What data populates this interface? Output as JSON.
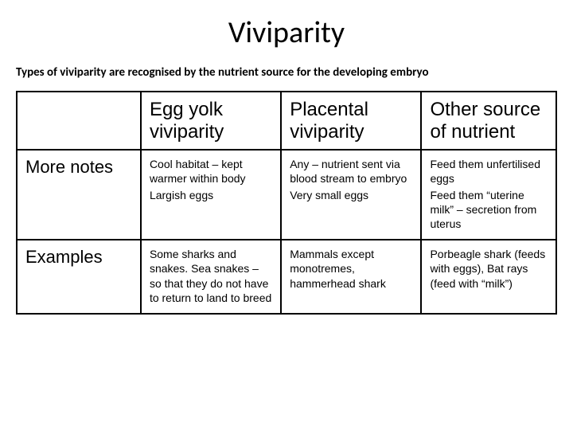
{
  "title": "Viviparity",
  "subtitle": "Types of viviparity are recognised by the nutrient source for the developing embryo",
  "table": {
    "columns": [
      "",
      "Egg yolk viviparity",
      "Placental viviparity",
      "Other source of nutrient"
    ],
    "row_labels": [
      "More notes",
      "Examples"
    ],
    "rows": [
      {
        "c1_l1": "Cool habitat – kept warmer within body",
        "c1_l2": "Largish eggs",
        "c2_l1": "Any – nutrient sent via blood stream to embryo",
        "c2_l2": "Very small eggs",
        "c3_l1": "Feed them unfertilised eggs",
        "c3_l2": "Feed them “uterine milk” – secretion from uterus"
      },
      {
        "c1_l1": "Some sharks and snakes. Sea snakes – so that they do not have to return to land to breed",
        "c2_l1": "Mammals except monotremes, hammerhead shark",
        "c3_l1": "Porbeagle shark (feeds with eggs), Bat rays (feed with “milk”)"
      }
    ]
  },
  "style": {
    "background_color": "#ffffff",
    "text_color": "#000000",
    "border_color": "#000000",
    "title_fontsize": 38,
    "subtitle_fontsize": 15,
    "header_fontsize": 24,
    "rowlabel_fontsize": 22,
    "body_fontsize": 14,
    "col_widths_pct": [
      23,
      26,
      26,
      25
    ]
  }
}
